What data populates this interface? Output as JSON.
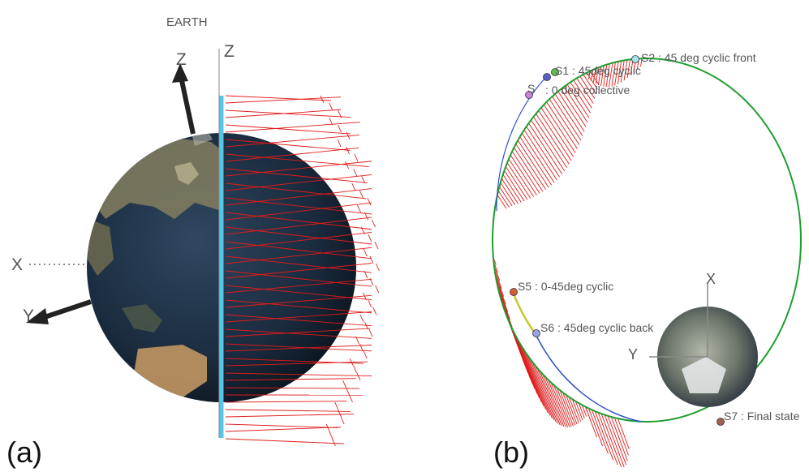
{
  "panel_a": {
    "panel_label": "(a)",
    "title": "EARTH",
    "axis_z_left": "Z",
    "axis_z_right": "Z",
    "axis_x": "X",
    "axis_y": "Y"
  },
  "panel_b": {
    "panel_label": "(b)",
    "axis_x": "X",
    "axis_y": "Y",
    "states": [
      {
        "id": "S1",
        "text": "S1 : 45deg cyclic",
        "color": "#5560c8"
      },
      {
        "id": "S2",
        "text": "S2 : 45 deg cyclic front",
        "color": "#5fb8d8"
      },
      {
        "id": "S3",
        "text": "S",
        "color": "#a060c0"
      },
      {
        "id": "S3b",
        "text": ": 0 deg collective",
        "color": "#a060c0"
      },
      {
        "id": "S5",
        "text": "S5 : 0-45deg cyclic",
        "color": "#d06030"
      },
      {
        "id": "S6",
        "text": "S6 : 45deg cyclic back",
        "color": "#6a70d0"
      },
      {
        "id": "S7",
        "text": "S7 : Final state",
        "color": "#a06050"
      }
    ]
  },
  "colors": {
    "orbit": "#1e9e2e",
    "orbit_segment": "#3050c8",
    "thrust": "#e01a1a",
    "spin_axis": "#56c6e8",
    "ocean": "#1a2b3e",
    "land": "#8a8060"
  }
}
